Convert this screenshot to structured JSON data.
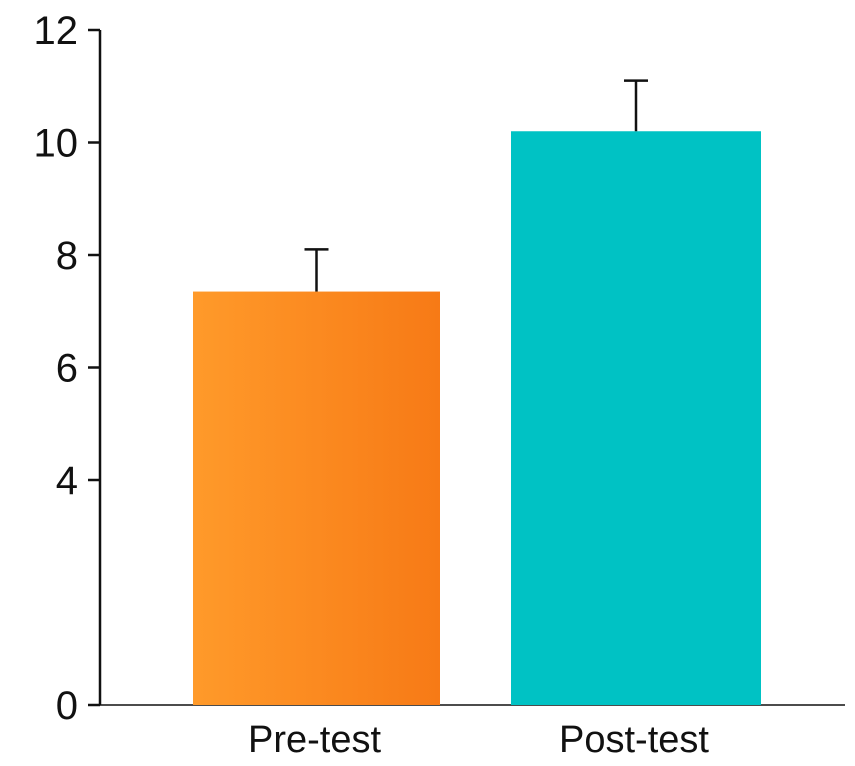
{
  "chart_data": {
    "type": "bar",
    "categories": [
      "Pre-test",
      "Post-test"
    ],
    "values": [
      7.35,
      10.2
    ],
    "errors": [
      0.75,
      0.9
    ],
    "yticks": [
      0,
      4,
      6,
      8,
      10,
      12
    ],
    "ylim": [
      0,
      12
    ],
    "title": "",
    "xlabel": "",
    "ylabel": "",
    "grid": false,
    "colors": {
      "pre_test_start": "#ff9a2a",
      "pre_test_end": "#f77a16",
      "post_test": "#00c2c4",
      "axis": "#111111",
      "error_bar": "#111111"
    }
  }
}
